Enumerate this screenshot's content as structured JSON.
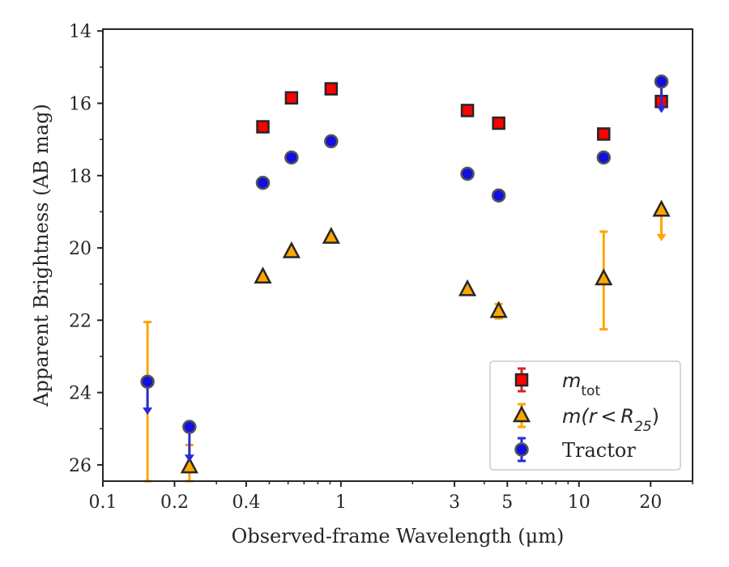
{
  "chart_data": {
    "type": "scatter",
    "title": "",
    "xlabel": "Observed-frame Wavelength (μm)",
    "ylabel": "Apparent Brightness (AB mag)",
    "xscale": "log",
    "xlim": [
      0.1,
      30
    ],
    "ylim": [
      26.45,
      13.95
    ],
    "y_inverted": true,
    "x_ticks": [
      {
        "value": 0.1,
        "label": "0.1"
      },
      {
        "value": 0.2,
        "label": "0.2"
      },
      {
        "value": 0.4,
        "label": "0.4"
      },
      {
        "value": 1,
        "label": "1"
      },
      {
        "value": 3,
        "label": "3"
      },
      {
        "value": 5,
        "label": "5"
      },
      {
        "value": 10,
        "label": "10"
      },
      {
        "value": 20,
        "label": "20"
      }
    ],
    "x_minor_ticks": [
      0.3,
      0.5,
      0.6,
      0.7,
      0.8,
      0.9,
      2,
      4,
      6,
      7,
      8,
      9,
      30
    ],
    "y_ticks": [
      {
        "value": 14,
        "label": "14"
      },
      {
        "value": 16,
        "label": "16"
      },
      {
        "value": 18,
        "label": "18"
      },
      {
        "value": 20,
        "label": "20"
      },
      {
        "value": 22,
        "label": "22"
      },
      {
        "value": 24,
        "label": "24"
      },
      {
        "value": 26,
        "label": "26"
      }
    ],
    "y_minor_ticks": [
      15,
      17,
      19,
      21,
      23,
      25
    ],
    "grid": false,
    "legend_position": "lower-right",
    "series": [
      {
        "name": "m_tot",
        "marker": "square",
        "face_color": "#ff0000",
        "edge_color": "#262626",
        "errorbar_color": "#d62728",
        "points": [
          {
            "x": 0.47,
            "y": 16.65,
            "err": 0.05
          },
          {
            "x": 0.62,
            "y": 15.85,
            "err": 0.05
          },
          {
            "x": 0.91,
            "y": 15.6,
            "err": 0.05
          },
          {
            "x": 3.4,
            "y": 16.2,
            "err": 0.05
          },
          {
            "x": 4.6,
            "y": 16.55,
            "err": 0.05
          },
          {
            "x": 12.7,
            "y": 16.85,
            "err": 0.05
          },
          {
            "x": 22.2,
            "y": 15.95,
            "err": 0.1
          }
        ]
      },
      {
        "name": "m(r < R25)",
        "marker": "triangle",
        "face_color": "#ffa500",
        "edge_color": "#262626",
        "errorbar_color": "#ffa500",
        "points": [
          {
            "x": 0.154,
            "err_lo": 22.05,
            "err_hi": 26.45,
            "show_marker": false
          },
          {
            "x": 0.231,
            "y": 26.05,
            "err_lo": 25.45,
            "err_hi": 26.45
          },
          {
            "x": 0.47,
            "y": 20.8,
            "err": 0.05
          },
          {
            "x": 0.62,
            "y": 20.1,
            "err": 0.05
          },
          {
            "x": 0.91,
            "y": 19.7,
            "err": 0.05
          },
          {
            "x": 3.4,
            "y": 21.15,
            "err": 0.05
          },
          {
            "x": 4.6,
            "y": 21.75,
            "err_lo": 21.55,
            "err_hi": 21.95
          },
          {
            "x": 12.7,
            "y": 20.85,
            "err_lo": 19.55,
            "err_hi": 22.25
          },
          {
            "x": 22.2,
            "y": 18.95,
            "upper_limit_to": 19.75
          }
        ]
      },
      {
        "name": "Tractor",
        "marker": "circle",
        "face_color": "#1010e0",
        "edge_color": "#555555",
        "errorbar_color": "#2a2ad8",
        "points": [
          {
            "x": 0.154,
            "y": 23.7,
            "upper_limit_to": 24.55
          },
          {
            "x": 0.231,
            "y": 24.95,
            "upper_limit_to": 25.85
          },
          {
            "x": 0.47,
            "y": 18.2,
            "err": 0.05
          },
          {
            "x": 0.62,
            "y": 17.5,
            "err": 0.05
          },
          {
            "x": 0.91,
            "y": 17.05,
            "err": 0.05
          },
          {
            "x": 3.4,
            "y": 17.95,
            "err": 0.05
          },
          {
            "x": 4.6,
            "y": 18.55,
            "err": 0.05
          },
          {
            "x": 12.7,
            "y": 17.5,
            "err": 0.05
          },
          {
            "x": 22.2,
            "y": 15.4,
            "upper_limit_to": 16.2
          }
        ]
      }
    ]
  },
  "legend": {
    "entries": [
      {
        "marker": "square",
        "text_main": "m",
        "text_sub": "tot",
        "text_tail": ""
      },
      {
        "marker": "triangle",
        "text_main": "m(r < R",
        "text_sub": "25",
        "text_tail": ")"
      },
      {
        "marker": "circle",
        "text_main": "Tractor",
        "text_sub": "",
        "text_tail": ""
      }
    ]
  }
}
